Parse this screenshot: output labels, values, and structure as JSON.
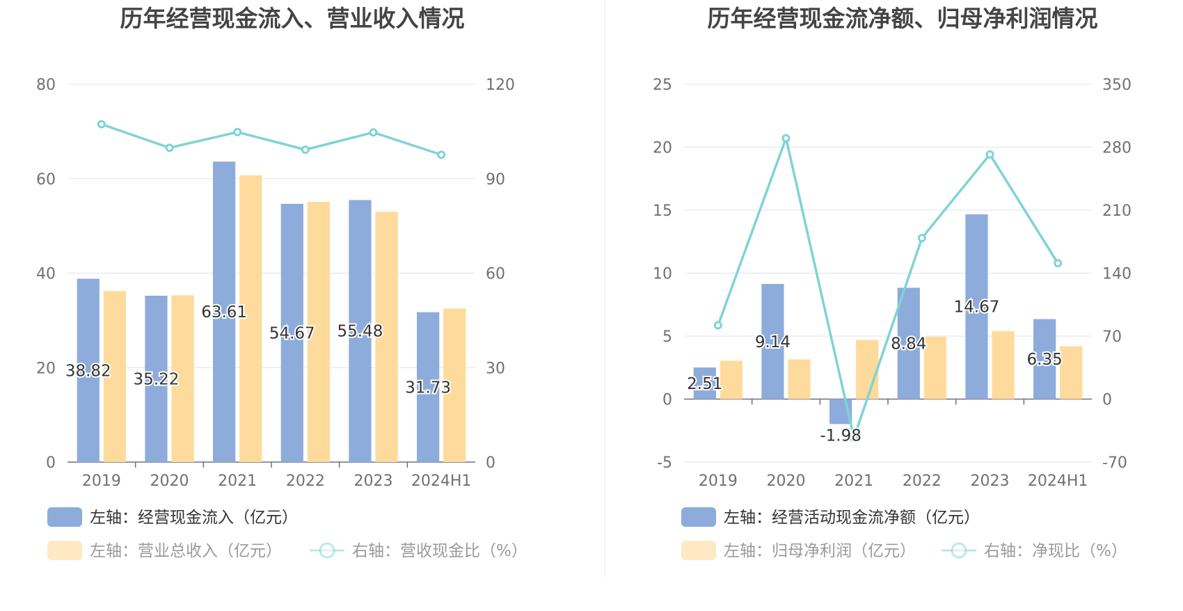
{
  "charts": [
    {
      "chart_data": {
        "type": "bar",
        "title": "历年经营现金流入、营业收入情况",
        "categories": [
          "2019",
          "2020",
          "2021",
          "2022",
          "2023",
          "2024H1"
        ],
        "left_axis": {
          "min": 0,
          "max": 80,
          "ticks": [
            "0",
            "20",
            "40",
            "60",
            "80"
          ]
        },
        "right_axis": {
          "min": 0,
          "max": 120,
          "ticks": [
            "0",
            "30",
            "60",
            "90",
            "120"
          ]
        },
        "grid": true,
        "series": [
          {
            "name": "左轴：经营现金流入（亿元）",
            "kind": "bar",
            "axis": "left",
            "color": "#8dacdb",
            "values": [
              38.82,
              35.22,
              63.61,
              54.67,
              55.48,
              31.73
            ],
            "labels": [
              "38.82",
              "35.22",
              "63.61",
              "54.67",
              "55.48",
              "31.73"
            ]
          },
          {
            "name": "左轴：营业总收入（亿元）",
            "kind": "bar",
            "axis": "left",
            "color": "#fedb9c",
            "values": [
              36.2,
              35.3,
              60.7,
              55.1,
              53.0,
              32.5
            ]
          },
          {
            "name": "右轴：营收现金比（%）",
            "kind": "line",
            "axis": "right",
            "color": "#7fd3d6",
            "values": [
              107.3,
              99.8,
              104.8,
              99.2,
              104.7,
              97.6
            ]
          }
        ],
        "legend_position": "bottom"
      }
    },
    {
      "chart_data": {
        "type": "bar",
        "title": "历年经营现金流净额、归母净利润情况",
        "categories": [
          "2019",
          "2020",
          "2021",
          "2022",
          "2023",
          "2024H1"
        ],
        "left_axis": {
          "min": -5,
          "max": 25,
          "ticks": [
            "-5",
            "0",
            "5",
            "10",
            "15",
            "20",
            "25"
          ]
        },
        "right_axis": {
          "min": -70,
          "max": 350,
          "ticks": [
            "-70",
            "0",
            "70",
            "140",
            "210",
            "280",
            "350"
          ]
        },
        "grid": true,
        "series": [
          {
            "name": "左轴：经营活动现金流净额（亿元）",
            "kind": "bar",
            "axis": "left",
            "color": "#8dacdb",
            "values": [
              2.51,
              9.14,
              -1.98,
              8.84,
              14.67,
              6.35
            ],
            "labels": [
              "2.51",
              "9.14",
              "-1.98",
              "8.84",
              "14.67",
              "6.35"
            ]
          },
          {
            "name": "左轴：归母净利润（亿元）",
            "kind": "bar",
            "axis": "left",
            "color": "#fedb9c",
            "values": [
              3.05,
              3.15,
              4.7,
              4.95,
              5.4,
              4.2
            ]
          },
          {
            "name": "右轴：净现比（%）",
            "kind": "line",
            "axis": "right",
            "color": "#7fd3d6",
            "values": [
              82,
              290,
              -43,
              179,
              272,
              151
            ]
          }
        ],
        "legend_position": "bottom"
      }
    }
  ]
}
